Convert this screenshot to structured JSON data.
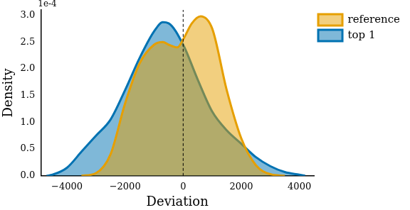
{
  "chart_data": {
    "type": "density",
    "x_label": "Deviation",
    "y_label": "Density",
    "annotations": [
      "1e-4"
    ],
    "vlines": [
      0
    ],
    "xlim": [
      -4900,
      4500
    ],
    "xticks": [
      {
        "value": -4000,
        "label": "−4000"
      },
      {
        "value": -2000,
        "label": "−2000"
      },
      0,
      2000,
      4000
    ],
    "ylim": [
      0,
      3.1
    ],
    "yticks": [
      {
        "value": 0,
        "label": "0.0"
      },
      {
        "value": 0.5,
        "label": "0.5"
      },
      {
        "value": 1,
        "label": "1.0"
      },
      {
        "value": 1.5,
        "label": "1.5"
      },
      {
        "value": 2,
        "label": "2.0"
      },
      {
        "value": 2.5,
        "label": "2.5"
      },
      {
        "value": 3,
        "label": "3.0"
      }
    ],
    "grid": false,
    "legend": "upper right",
    "series": [
      {
        "name": "reference",
        "color": "#e69f00",
        "x": [
          -3500,
          -3000,
          -2500,
          -2000,
          -1500,
          -1000,
          -700,
          -500,
          -200,
          0,
          300,
          600,
          1000,
          1500,
          2000,
          2500,
          3000,
          3500
        ],
        "values": [
          0,
          0.05,
          0.4,
          1.35,
          2.1,
          2.45,
          2.5,
          2.45,
          2.4,
          2.55,
          2.85,
          2.98,
          2.75,
          1.6,
          0.7,
          0.2,
          0.03,
          0
        ]
      },
      {
        "name": "top 1",
        "color": "#0072b2",
        "x": [
          -4700,
          -4500,
          -4000,
          -3500,
          -3000,
          -2500,
          -2000,
          -1500,
          -1000,
          -700,
          -500,
          0,
          500,
          1000,
          1500,
          2000,
          2500,
          3000,
          3500,
          4000,
          4200
        ],
        "values": [
          0,
          0.02,
          0.15,
          0.45,
          0.75,
          1.05,
          1.6,
          2.2,
          2.7,
          2.87,
          2.85,
          2.45,
          1.8,
          1.2,
          0.85,
          0.6,
          0.35,
          0.18,
          0.07,
          0.02,
          0
        ]
      }
    ]
  }
}
